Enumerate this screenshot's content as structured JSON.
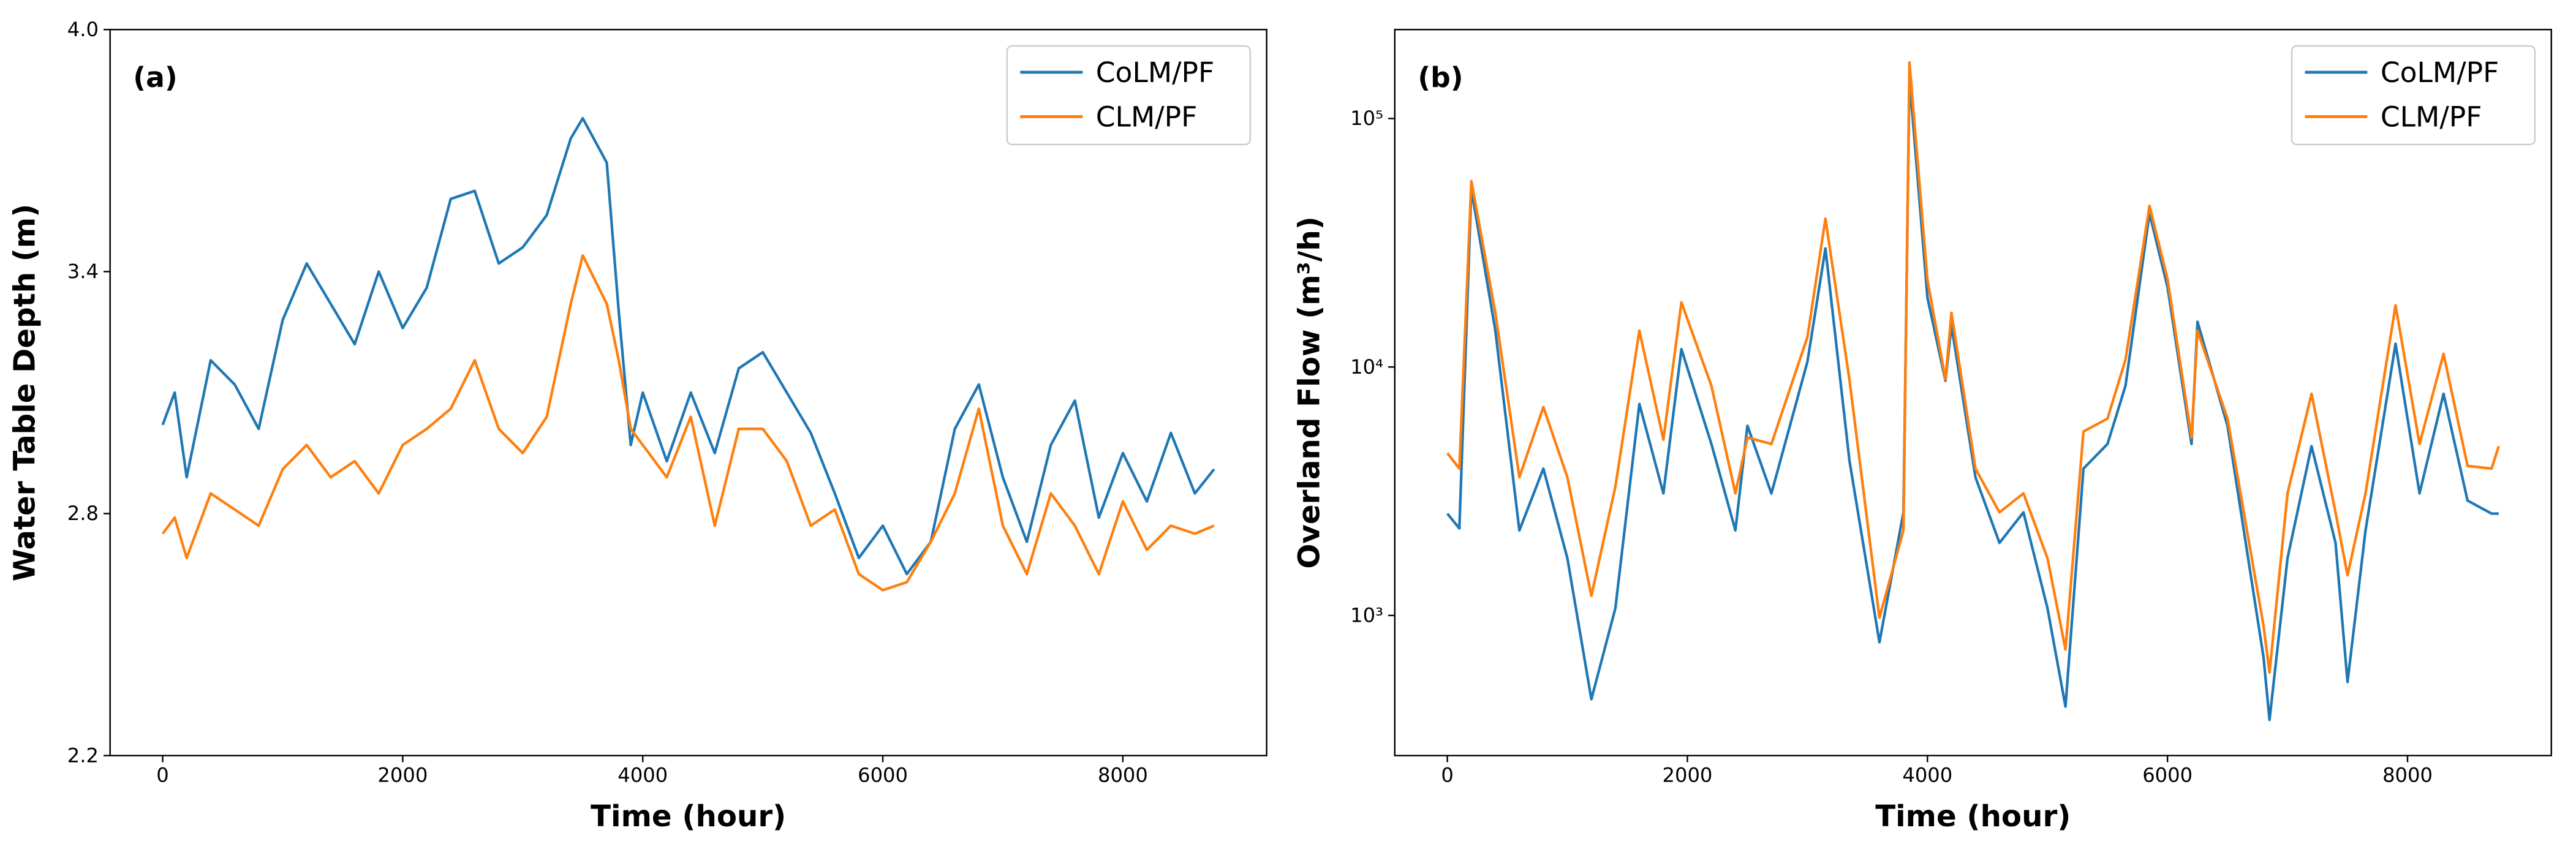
{
  "chart_data": [
    {
      "type": "line",
      "panel_label": "(a)",
      "xlabel": "Time (hour)",
      "ylabel": "Water Table Depth (m)",
      "log_y": false,
      "legend": "upper right",
      "xlim": [
        -438,
        9198
      ],
      "ylim": [
        2.2,
        4.0
      ],
      "xticks": [
        0,
        2000,
        4000,
        6000,
        8000
      ],
      "yticks": [
        2.2,
        2.8,
        3.4,
        {
          "value": 4,
          "label": "4.0"
        }
      ],
      "x": [
        0,
        100,
        200,
        400,
        600,
        800,
        1000,
        1200,
        1400,
        1600,
        1800,
        2000,
        2200,
        2400,
        2600,
        2800,
        3000,
        3200,
        3400,
        3500,
        3700,
        3800,
        3900,
        4000,
        4200,
        4400,
        4600,
        4800,
        5000,
        5200,
        5400,
        5600,
        5800,
        6000,
        6200,
        6400,
        6600,
        6800,
        7000,
        7200,
        7400,
        7600,
        7800,
        8000,
        8200,
        8400,
        8600,
        8760
      ],
      "series": [
        {
          "name": "CoLM/PF",
          "color": "#1f77b4",
          "values": [
            3.02,
            3.1,
            2.89,
            3.18,
            3.12,
            3.01,
            3.28,
            3.42,
            3.32,
            3.22,
            3.4,
            3.26,
            3.36,
            3.58,
            3.6,
            3.42,
            3.46,
            3.54,
            3.73,
            3.78,
            3.67,
            3.3,
            2.97,
            3.1,
            2.93,
            3.1,
            2.95,
            3.16,
            3.2,
            3.1,
            3.0,
            2.85,
            2.69,
            2.77,
            2.65,
            2.73,
            3.01,
            3.12,
            2.89,
            2.73,
            2.97,
            3.08,
            2.79,
            2.95,
            2.83,
            3.0,
            2.85,
            2.91
          ]
        },
        {
          "name": "CLM/PF",
          "color": "#ff7f0e",
          "values": [
            2.75,
            2.79,
            2.69,
            2.85,
            2.81,
            2.77,
            2.91,
            2.97,
            2.89,
            2.93,
            2.85,
            2.97,
            3.01,
            3.06,
            3.18,
            3.01,
            2.95,
            3.04,
            3.32,
            3.44,
            3.32,
            3.18,
            3.01,
            2.97,
            2.89,
            3.04,
            2.77,
            3.01,
            3.01,
            2.93,
            2.77,
            2.81,
            2.65,
            2.61,
            2.63,
            2.73,
            2.85,
            3.06,
            2.77,
            2.65,
            2.85,
            2.77,
            2.65,
            2.83,
            2.71,
            2.77,
            2.75,
            2.77
          ]
        }
      ]
    },
    {
      "type": "line",
      "panel_label": "(b)",
      "xlabel": "Time (hour)",
      "ylabel": "Overland Flow (m³/h)",
      "log_y": true,
      "legend": "upper right",
      "xlim": [
        -438,
        9198
      ],
      "ylim": [
        273,
        228000
      ],
      "xticks": [
        0,
        2000,
        4000,
        6000,
        8000
      ],
      "yticks": [
        {
          "value": 1000,
          "label": "10³"
        },
        {
          "value": 10000,
          "label": "10⁴"
        },
        {
          "value": 100000,
          "label": "10⁵"
        }
      ],
      "x": [
        0,
        100,
        200,
        400,
        600,
        800,
        1000,
        1200,
        1400,
        1600,
        1800,
        1950,
        2200,
        2400,
        2500,
        2700,
        3000,
        3150,
        3350,
        3600,
        3800,
        3850,
        4000,
        4150,
        4200,
        4400,
        4600,
        4800,
        5000,
        5150,
        5300,
        5500,
        5650,
        5850,
        6000,
        6200,
        6250,
        6500,
        6800,
        6850,
        7000,
        7200,
        7400,
        7500,
        7650,
        7900,
        8100,
        8300,
        8500,
        8700,
        8760
      ],
      "series": [
        {
          "name": "CoLM/PF",
          "color": "#1f77b4",
          "values": [
            2570,
            2240,
            52000,
            14000,
            2200,
            3900,
            1700,
            460,
            1070,
            7100,
            3100,
            11800,
            4900,
            2200,
            5800,
            3100,
            10500,
            30000,
            4200,
            780,
            2600,
            145000,
            19000,
            8800,
            14700,
            3600,
            1960,
            2600,
            1070,
            430,
            3900,
            4900,
            8400,
            41500,
            21000,
            4900,
            15200,
            5800,
            680,
            380,
            1700,
            4800,
            1960,
            540,
            2200,
            12400,
            3100,
            7800,
            2900,
            2570,
            2570
          ]
        },
        {
          "name": "CLM/PF",
          "color": "#ff7f0e",
          "values": [
            4500,
            3900,
            56000,
            16500,
            3600,
            6900,
            3600,
            1200,
            3300,
            14000,
            5100,
            18200,
            8400,
            3100,
            5200,
            4900,
            13200,
            39500,
            8900,
            980,
            2200,
            168000,
            22400,
            8900,
            16500,
            3900,
            2600,
            3100,
            1700,
            730,
            5500,
            6200,
            10700,
            44500,
            22600,
            5200,
            14000,
            6200,
            910,
            590,
            3100,
            7800,
            2600,
            1450,
            3100,
            17700,
            4900,
            11300,
            4000,
            3900,
            4800
          ]
        }
      ]
    }
  ]
}
